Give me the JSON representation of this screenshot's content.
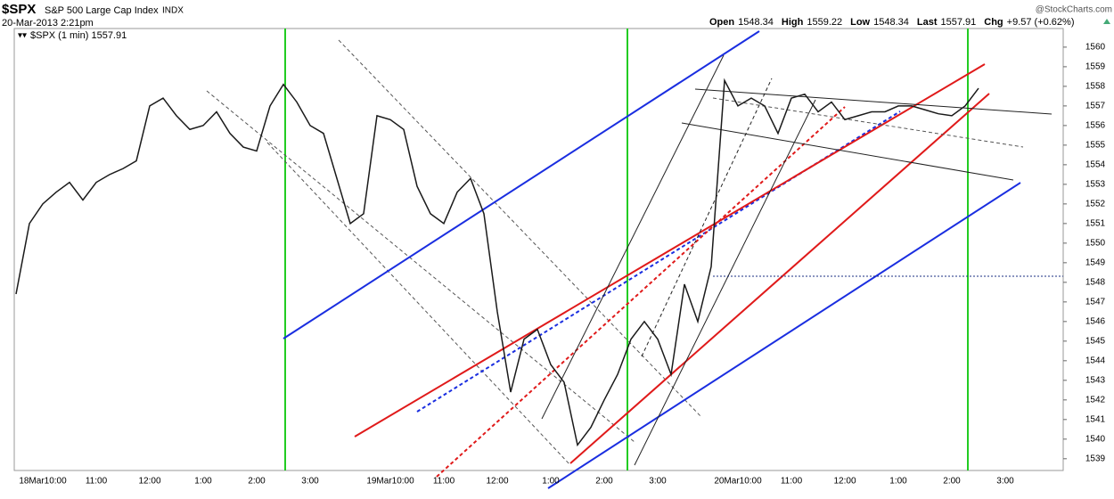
{
  "chart_data": {
    "type": "line",
    "symbol": "$SPX",
    "title": "S&P 500 Large Cap Index",
    "exchange": "INDX",
    "date": "20-Mar-2013 2:21pm",
    "source": "@StockCharts.com",
    "stats": [
      {
        "label": "Open",
        "value": 1548.34
      },
      {
        "label": "High",
        "value": 1559.22
      },
      {
        "label": "Low",
        "value": 1548.34
      },
      {
        "label": "Last",
        "value": 1557.91
      },
      {
        "label": "Chg",
        "value": "+9.57 (+0.62%)"
      }
    ],
    "categories": [
      null,
      null,
      "18Mar10:00",
      null,
      null,
      null,
      "11:00",
      null,
      null,
      null,
      "12:00",
      null,
      null,
      null,
      "1:00",
      null,
      null,
      null,
      "2:00",
      null,
      null,
      null,
      "3:00",
      null,
      null,
      null,
      null,
      null,
      "19Mar10:00",
      null,
      null,
      null,
      "11:00",
      null,
      null,
      null,
      "12:00",
      null,
      null,
      null,
      "1:00",
      null,
      null,
      null,
      "2:00",
      null,
      null,
      null,
      "3:00",
      null,
      null,
      null,
      null,
      null,
      "20Mar10:00",
      null,
      null,
      null,
      "11:00",
      null,
      null,
      null,
      "12:00",
      null,
      null,
      null,
      "1:00",
      null,
      null,
      null,
      "2:00",
      null,
      null,
      null,
      "3:00",
      null,
      null,
      null
    ],
    "series": [
      {
        "name": "$SPX (1 min) 1557.91",
        "color": "#1a1a1a",
        "values": [
          1547.4,
          1551,
          1552,
          1552.6,
          1553.1,
          1552.2,
          1553.1,
          1553.5,
          1553.8,
          1554.2,
          1557,
          1557.4,
          1556.5,
          1555.8,
          1556,
          1556.7,
          1555.6,
          1554.9,
          1554.7,
          1557,
          1558.1,
          1557.2,
          1556,
          1555.6,
          1553.3,
          1551,
          1551.5,
          1556.5,
          1556.3,
          1555.8,
          1552.9,
          1551.5,
          1551,
          1552.6,
          1553.3,
          1551.5,
          1546.5,
          1542.4,
          1545.1,
          1545.6,
          1543.8,
          1542.9,
          1539.7,
          1540.6,
          1542,
          1543.3,
          1545.1,
          1546,
          1545.1,
          1543.3,
          1547.9,
          1546,
          1548.8,
          1558.3,
          1557,
          1557.4,
          1557,
          1555.6,
          1557.4,
          1557.6,
          1556.7,
          1557.2,
          1556.3,
          1556.5,
          1556.7,
          1556.7,
          1557,
          1557,
          1556.8,
          1556.6,
          1556.5,
          1557,
          1557.9,
          null,
          null,
          null,
          null,
          null
        ]
      }
    ],
    "ylim": [
      1538.4,
      1560.95
    ],
    "yticks": [
      1539,
      1540,
      1541,
      1542,
      1543,
      1544,
      1545,
      1546,
      1547,
      1548,
      1549,
      1550,
      1551,
      1552,
      1553,
      1554,
      1555,
      1556,
      1557,
      1558,
      1559,
      1560
    ]
  }
}
